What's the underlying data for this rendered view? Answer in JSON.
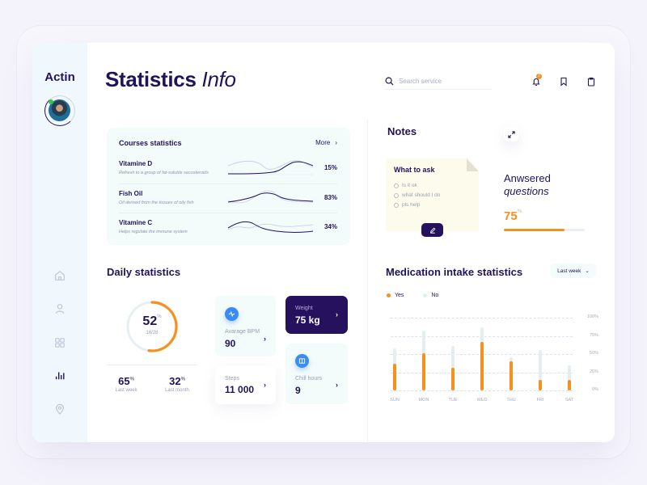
{
  "sidebar": {
    "brand": "Actin",
    "items": [
      {
        "name": "home",
        "icon": "home-icon"
      },
      {
        "name": "profile",
        "icon": "user-icon"
      },
      {
        "name": "apps",
        "icon": "grid-icon"
      },
      {
        "name": "statistics",
        "icon": "bar-chart-icon",
        "active": true
      },
      {
        "name": "location",
        "icon": "map-pin-icon"
      }
    ]
  },
  "header": {
    "title_bold": "Statistics",
    "title_italic": "Info",
    "search_placeholder": "Search service",
    "notification_count": "2"
  },
  "courses": {
    "title": "Courses statistics",
    "more_label": "More",
    "items": [
      {
        "name": "Vitamine D",
        "desc": "Refresh to a group of fat-soluble secosteroids",
        "pct": "15%"
      },
      {
        "name": "Fish Oil",
        "desc": "Oil derived from the tissues of oily fish",
        "pct": "83%"
      },
      {
        "name": "Vitamine C",
        "desc": "Helps regulate the immune system",
        "pct": "34%"
      }
    ]
  },
  "daily": {
    "title": "Daily statistics",
    "ring_value": "52",
    "ring_unit": "%",
    "ring_sub": "16/28",
    "ring_pct": 52,
    "last_week_value": "65",
    "last_week_label": "Last week",
    "last_month_value": "32",
    "last_month_label": "Last month",
    "unit": "%",
    "tiles": {
      "bpm": {
        "label": "Avarage BPM",
        "value": "90"
      },
      "weight": {
        "label": "Weight",
        "value": "75 kg"
      },
      "steps": {
        "label": "Steps",
        "value": "11 000"
      },
      "chill": {
        "label": "Chill hours",
        "value": "9"
      }
    }
  },
  "notes": {
    "title": "Notes",
    "card_title": "What to ask",
    "items": [
      "Is it ok",
      "what should I do",
      "pls help"
    ],
    "answered_line1": "Anwsered",
    "answered_line2": "questions",
    "answered_value": "75",
    "answered_unit": "%",
    "answered_pct": 75
  },
  "medication": {
    "title": "Medication intake statistics",
    "period": "Last week",
    "legend_yes": "Yes",
    "legend_no": "No"
  },
  "colors": {
    "primary": "#22125a",
    "accent": "#f7901e",
    "blue": "#3a8cf4",
    "track": "#e4eef0"
  },
  "chart_data": {
    "type": "bar",
    "title": "Medication intake statistics",
    "categories": [
      "SUN",
      "MON",
      "TUE",
      "WED",
      "THU",
      "FRI",
      "SAT"
    ],
    "series": [
      {
        "name": "Yes",
        "values": [
          37,
          51,
          31,
          67,
          40,
          14,
          14
        ],
        "color": "#f7901e"
      },
      {
        "name": "No",
        "values": [
          58,
          82,
          61,
          87,
          46,
          56,
          34
        ],
        "color": "#e4eef0"
      }
    ],
    "yticks": [
      "100%",
      "75%",
      "50%",
      "25%",
      "0%"
    ],
    "ylim": [
      0,
      100
    ],
    "grid": true,
    "legend_position": "top-left"
  }
}
